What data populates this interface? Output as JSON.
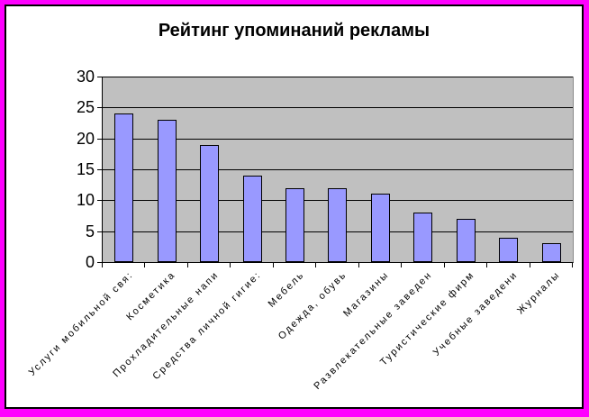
{
  "window": {
    "frame_color": "#FF00FF",
    "inner_border_color": "#000000",
    "background": "#FFFFFF"
  },
  "chart_data": {
    "type": "bar",
    "title": "Рейтинг упоминаний рекламы",
    "categories": [
      "Услуги мобильной свя:",
      "Косметика",
      "Прохладительные напи",
      "Средства личной гигие:",
      "Мебель",
      "Одежда, обувь",
      "Магазины",
      "Развлекательные заведен",
      "Туристические фирм",
      "Учебные заведени",
      "Журналы"
    ],
    "values": [
      24,
      23,
      19,
      14,
      12,
      12,
      11,
      8,
      7,
      4,
      3
    ],
    "xlabel": "",
    "ylabel": "",
    "ylim": [
      0,
      30
    ],
    "yticks": [
      0,
      5,
      10,
      15,
      20,
      25,
      30
    ],
    "grid": "horizontal",
    "gridline_color": "#000000",
    "legend": "none",
    "bar_color": "#9999FF",
    "bar_border_color": "#000000",
    "plot_background": "#C0C0C0",
    "category_label_rotation_deg": 45
  }
}
